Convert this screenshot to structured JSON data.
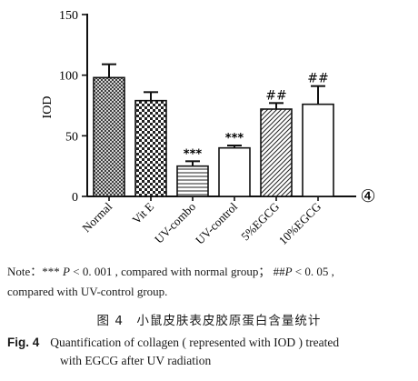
{
  "chart_data": {
    "type": "bar",
    "ylabel": "IOD",
    "ylim": [
      0,
      150
    ],
    "yticks": [
      0,
      50,
      100,
      150
    ],
    "categories": [
      "Normal",
      "Vit E",
      "UV-combo",
      "UV-control",
      "5%EGCG",
      "10%EGCG"
    ],
    "values": [
      98,
      79,
      25,
      40,
      72,
      76
    ],
    "errors": [
      11,
      7,
      4,
      2,
      5,
      15
    ],
    "annotations": [
      "",
      "",
      "***",
      "***",
      "##",
      "##"
    ],
    "corner_mark": "④",
    "grid": false,
    "patterns": [
      "crosshatch",
      "checker",
      "hlines",
      "white",
      "diag",
      "white"
    ]
  },
  "note": {
    "prefix": "Note：",
    "stars": "***",
    "p_letter": "P",
    "part1_rest": " < 0. 001 , compared with normal group；",
    "hashes": "##",
    "p_letter2": "P",
    "part2_rest": " < 0. 05 ,",
    "line2": "compared with UV-control group."
  },
  "caption": {
    "cn": "图 4　小鼠皮肤表皮胶原蛋白含量统计",
    "fig_label": "Fig. 4",
    "en_line1": "Quantification of collagen ( represented with IOD ) treated",
    "en_line2": "with EGCG after UV radiation"
  }
}
